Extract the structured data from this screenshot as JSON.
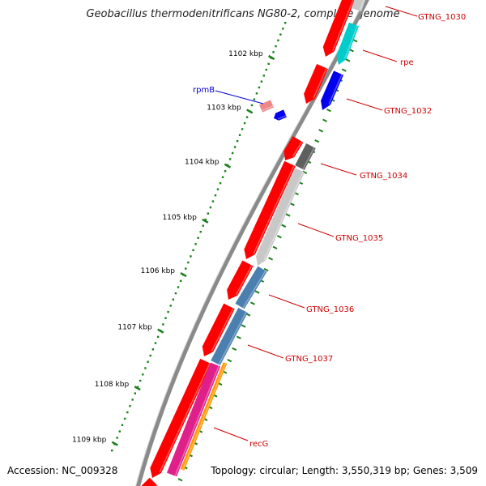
{
  "title": "Geobacillus thermodenitrificans NG80-2, complete genome",
  "footer": {
    "accession": "Accession: NC_009328",
    "summary": "Topology: circular; Length: 3,550,319 bp; Genes: 3,509"
  },
  "ruler": {
    "labels": [
      "1102 kbp",
      "1103 kbp",
      "1104 kbp",
      "1105 kbp",
      "1106 kbp",
      "1107 kbp",
      "1108 kbp",
      "1109 kbp"
    ],
    "color": "#1a7f1a"
  },
  "backbone_color": "#8a8a8a",
  "gene_labels": [
    {
      "name": "GTNG_1030",
      "color": "#cc0000"
    },
    {
      "name": "rpe",
      "color": "#cc0000"
    },
    {
      "name": "GTNG_1032",
      "color": "#cc0000"
    },
    {
      "name": "GTNG_1034",
      "color": "#cc0000"
    },
    {
      "name": "GTNG_1035",
      "color": "#cc0000"
    },
    {
      "name": "GTNG_1036",
      "color": "#cc0000"
    },
    {
      "name": "GTNG_1037",
      "color": "#cc0000"
    },
    {
      "name": "recG",
      "color": "#cc0000"
    },
    {
      "name": "rpmB",
      "color": "#0000cc"
    }
  ],
  "feature_colors": {
    "cds": "#ff0000",
    "rpe": "#00cccc",
    "gtng_1032": "#0000ee",
    "gtng_1034": "#606060",
    "gtng_1035": "#c8c8c8",
    "gtng_1036": "#4a7fb0",
    "gtng_1037": "#4a7fb0",
    "recg_magenta": "#e0208a",
    "recg_orange": "#ff9900",
    "rpmb_light": "#ee8888",
    "rpmb_blue": "#0000ee"
  }
}
